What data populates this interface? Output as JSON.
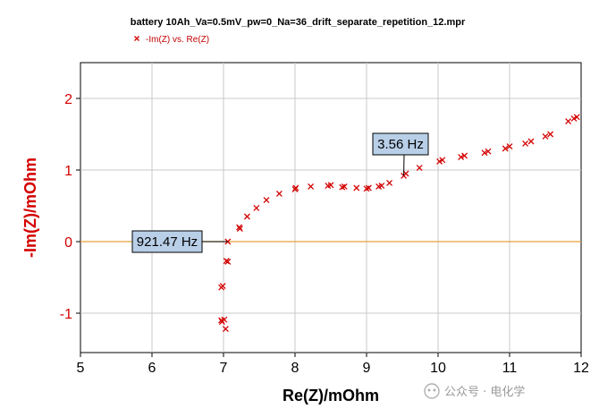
{
  "chart_data": {
    "type": "scatter",
    "title": "battery 10Ah_Va=0.5mV_pw=0_Na=36_drift_separate_repetition_12.mpr",
    "xlabel": "Re(Z)/mOhm",
    "ylabel": "-Im(Z)/mOhm",
    "xlim": [
      5,
      12
    ],
    "ylim": [
      -1.55,
      2.5
    ],
    "xticks": [
      5,
      6,
      7,
      8,
      9,
      10,
      11,
      12
    ],
    "yticks": [
      -1,
      0,
      1,
      2
    ],
    "grid": true,
    "legend_position": "top-left",
    "marker": "x",
    "color": "#d40000",
    "reference_line": {
      "y": 0,
      "color": "#e8a13a"
    },
    "series": [
      {
        "name": "-Im(Z) vs. Re(Z)",
        "points": [
          [
            6.97,
            -1.1
          ],
          [
            6.98,
            -1.12
          ],
          [
            7.01,
            -1.09
          ],
          [
            7.03,
            -1.22
          ],
          [
            6.97,
            -0.64
          ],
          [
            6.99,
            -0.62
          ],
          [
            7.04,
            -0.27
          ],
          [
            7.06,
            -0.28
          ],
          [
            7.06,
            0.0
          ],
          [
            7.22,
            0.2
          ],
          [
            7.23,
            0.18
          ],
          [
            7.33,
            0.35
          ],
          [
            7.46,
            0.47
          ],
          [
            7.6,
            0.58
          ],
          [
            7.78,
            0.67
          ],
          [
            8.0,
            0.73
          ],
          [
            8.01,
            0.75
          ],
          [
            8.22,
            0.77
          ],
          [
            8.46,
            0.78
          ],
          [
            8.5,
            0.79
          ],
          [
            8.66,
            0.76
          ],
          [
            8.69,
            0.77
          ],
          [
            8.86,
            0.75
          ],
          [
            9.0,
            0.74
          ],
          [
            9.03,
            0.75
          ],
          [
            9.17,
            0.77
          ],
          [
            9.21,
            0.78
          ],
          [
            9.32,
            0.82
          ],
          [
            9.52,
            0.92
          ],
          [
            9.55,
            0.95
          ],
          [
            9.74,
            1.03
          ],
          [
            10.02,
            1.12
          ],
          [
            10.06,
            1.14
          ],
          [
            10.32,
            1.18
          ],
          [
            10.37,
            1.2
          ],
          [
            10.65,
            1.24
          ],
          [
            10.7,
            1.26
          ],
          [
            10.94,
            1.3
          ],
          [
            11.0,
            1.33
          ],
          [
            11.22,
            1.37
          ],
          [
            11.3,
            1.4
          ],
          [
            11.5,
            1.47
          ],
          [
            11.57,
            1.5
          ],
          [
            11.82,
            1.68
          ],
          [
            11.9,
            1.72
          ],
          [
            11.94,
            1.74
          ]
        ]
      }
    ],
    "annotations": [
      {
        "text": "921.47 Hz",
        "x": 7.06,
        "y": 0.0
      },
      {
        "text": "3.56 Hz",
        "x": 9.52,
        "y": 0.92
      }
    ]
  },
  "watermark": {
    "text": "公众号 · 电化学"
  }
}
